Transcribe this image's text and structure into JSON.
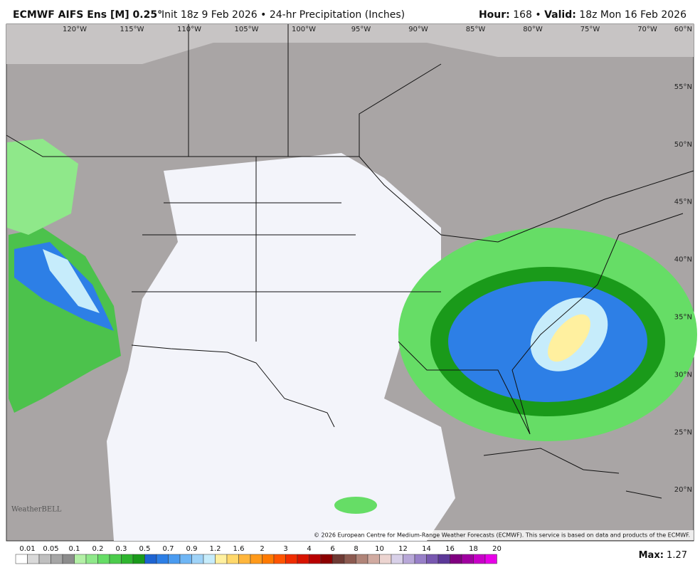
{
  "header": {
    "model": "ECMWF AIFS Ens [M] 0.25°",
    "run": "Init 18z 9 Feb 2026 • 24-hr Precipitation (Inches)",
    "hour_label": "Hour:",
    "hour": "168 •",
    "valid_label": "Valid:",
    "valid": "18z Mon 16 Feb 2026"
  },
  "map": {
    "longitudes": [
      "120°W",
      "115°W",
      "110°W",
      "105°W",
      "100°W",
      "95°W",
      "90°W",
      "85°W",
      "80°W",
      "75°W",
      "70°W"
    ],
    "latitudes": [
      "60°N",
      "55°N",
      "50°N",
      "45°N",
      "40°N",
      "35°N",
      "30°N",
      "25°N",
      "20°N"
    ],
    "logo": "WeatherBELL",
    "copyright": "© 2026 European Centre for Medium-Range Weather Forecasts (ECMWF). This service is based on data and products of the ECMWF."
  },
  "colorbar": {
    "labels": [
      "0.01",
      "0.05",
      "0.1",
      "0.2",
      "0.3",
      "0.5",
      "0.7",
      "0.9",
      "1.2",
      "1.6",
      "2",
      "3",
      "4",
      "6",
      "8",
      "10",
      "12",
      "14",
      "16",
      "18",
      "20"
    ],
    "colors": [
      "#ffffff",
      "#d9d9d9",
      "#bfbfbf",
      "#a6a6a6",
      "#8c8c8c",
      "#b3f0a6",
      "#8fe88a",
      "#66dd66",
      "#4ccc4c",
      "#2fb52f",
      "#1a9a1a",
      "#1e64d2",
      "#2d7fe6",
      "#4a9bf0",
      "#6fb6f5",
      "#9fd3f8",
      "#c6ecfb",
      "#fff09f",
      "#ffd86b",
      "#ffb63c",
      "#ff9a1a",
      "#ff7a00",
      "#ff5500",
      "#f02d00",
      "#d81400",
      "#b80000",
      "#8c0000",
      "#6e3a34",
      "#8c5a50",
      "#b08478",
      "#d0aaa0",
      "#ecd4d0",
      "#d8d0e8",
      "#b8a8d8",
      "#9880c8",
      "#7858b0",
      "#5c3898",
      "#800080",
      "#a000a0",
      "#c800c8",
      "#e800e8"
    ]
  },
  "footer": {
    "max_label": "Max:",
    "max": "1.27"
  }
}
